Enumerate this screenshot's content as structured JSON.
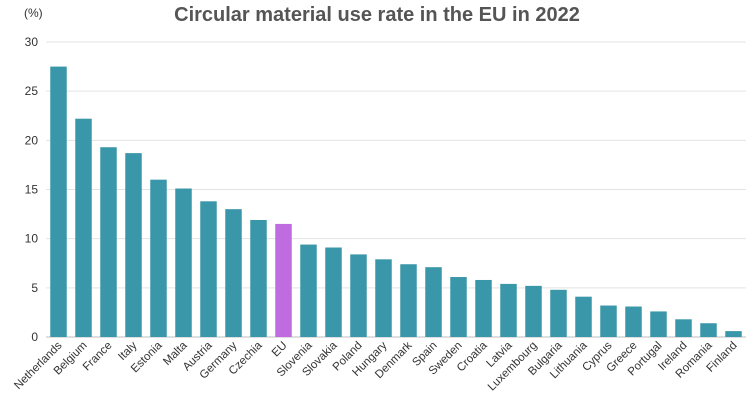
{
  "chart_data": {
    "type": "bar",
    "title": "Circular material use rate in the EU in 2022",
    "unit": "(%)",
    "xlabel": "",
    "ylabel": "",
    "ylim": [
      0,
      30
    ],
    "yticks": [
      0,
      5,
      10,
      15,
      20,
      25,
      30
    ],
    "grid": true,
    "categories": [
      "Netherlands",
      "Belgium",
      "France",
      "Italy",
      "Estonia",
      "Malta",
      "Austria",
      "Germany",
      "Czechia",
      "EU",
      "Slovenia",
      "Slovakia",
      "Poland",
      "Hungary",
      "Denmark",
      "Spain",
      "Sweden",
      "Croatia",
      "Latvia",
      "Luxembourg",
      "Bulgaria",
      "Lithuania",
      "Cyprus",
      "Greece",
      "Portugal",
      "Ireland",
      "Romania",
      "Finland"
    ],
    "values": [
      27.5,
      22.2,
      19.3,
      18.7,
      16.0,
      15.1,
      13.8,
      13.0,
      11.9,
      11.5,
      9.4,
      9.1,
      8.4,
      7.9,
      7.4,
      7.1,
      6.1,
      5.8,
      5.4,
      5.2,
      4.8,
      4.1,
      3.2,
      3.1,
      2.6,
      1.8,
      1.4,
      0.6
    ],
    "colors": {
      "default": "#3a97a9",
      "highlight": "#bf6ce0",
      "grid": "#e3e3e3"
    },
    "highlight_category": "EU"
  }
}
